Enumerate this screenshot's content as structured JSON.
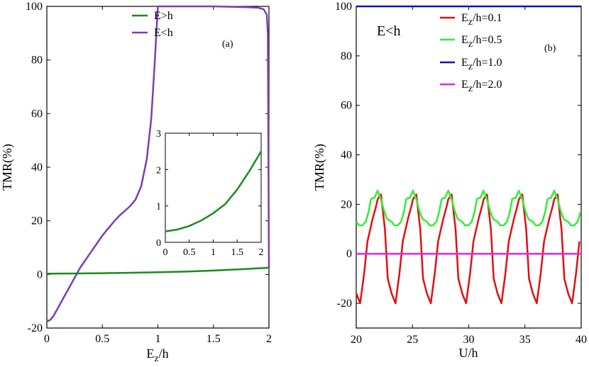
{
  "figure": "TMR versus Ez/h and U/h",
  "chart_data": [
    {
      "id": "a",
      "type": "line",
      "panel_label": "(a)",
      "xlabel": {
        "main": "E",
        "sub": "z",
        "rest": "/h"
      },
      "ylabel": "TMR(%)",
      "xlim": [
        0,
        2
      ],
      "ylim": [
        -20,
        100
      ],
      "xticks": [
        0,
        0.5,
        1,
        1.5,
        2
      ],
      "xtick_labels": [
        "0",
        "0.5",
        "1",
        "1.5",
        "2"
      ],
      "yticks": [
        -20,
        0,
        20,
        40,
        60,
        80,
        100
      ],
      "ytick_labels": [
        "-20",
        "0",
        "20",
        "40",
        "60",
        "80",
        "100"
      ],
      "legend_position": "top-right",
      "series": [
        {
          "name": "E>h",
          "color": "#1a8c1a",
          "x": [
            0,
            0.25,
            0.5,
            0.75,
            1.0,
            1.25,
            1.5,
            1.75,
            2.0
          ],
          "y": [
            0.3,
            0.35,
            0.45,
            0.6,
            0.8,
            1.05,
            1.45,
            1.95,
            2.5
          ]
        },
        {
          "name": "E<h",
          "color": "#7b3fb5",
          "x": [
            0.0,
            0.01,
            0.03,
            0.06,
            0.1,
            0.2,
            0.3,
            0.4,
            0.5,
            0.6,
            0.65,
            0.7,
            0.75,
            0.8,
            0.85,
            0.9,
            0.94,
            0.97,
            0.99,
            1.0,
            1.2,
            1.5,
            1.8,
            1.9,
            1.95,
            1.98,
            1.99,
            2.0
          ],
          "y": [
            -17,
            -17.4,
            -17,
            -15.5,
            -12.5,
            -5,
            2.5,
            8.5,
            14.5,
            19.5,
            21.8,
            23.6,
            25.5,
            28,
            33,
            43,
            58,
            78,
            93,
            100,
            100,
            100,
            99.7,
            99.5,
            99,
            97,
            90,
            2.5
          ]
        }
      ],
      "inset": {
        "xlim": [
          0,
          2
        ],
        "ylim": [
          0,
          3
        ],
        "xticks": [
          0,
          0.5,
          1,
          1.5,
          2
        ],
        "xtick_labels": [
          "0",
          "0.5",
          "1",
          "1.5",
          "2"
        ],
        "yticks": [
          0,
          1,
          2,
          3
        ],
        "ytick_labels": [
          "0",
          "1",
          "2",
          "3"
        ],
        "series_name": "E>h"
      }
    },
    {
      "id": "b",
      "type": "line",
      "panel_label": "(b)",
      "annotation": "E<h",
      "xlabel": "U/h",
      "ylabel": "TMR(%)",
      "xlim": [
        20,
        40
      ],
      "ylim": [
        -30,
        100
      ],
      "xticks": [
        20,
        25,
        30,
        35,
        40
      ],
      "xtick_labels": [
        "20",
        "25",
        "30",
        "35",
        "40"
      ],
      "yticks": [
        -20,
        0,
        20,
        40,
        60,
        80,
        100
      ],
      "ytick_labels": [
        "-20",
        "0",
        "20",
        "40",
        "60",
        "80",
        "100"
      ],
      "legend_position": "top-right",
      "period": 3.14,
      "series": [
        {
          "name_main": "E",
          "name_sub": "z",
          "name_rest": "/h=0.1",
          "color": "#e01010",
          "periodic_phase_u": [
            0.0,
            0.35,
            0.7,
            1.0,
            1.45,
            1.75,
            1.9,
            2.2,
            2.55,
            2.8,
            3.14
          ],
          "periodic_phase_y": [
            -16,
            -20,
            -8,
            5,
            14,
            19,
            22,
            24,
            10,
            -10,
            -16
          ]
        },
        {
          "name_main": "E",
          "name_sub": "z",
          "name_rest": "/h=0.5",
          "color": "#33ee33",
          "periodic_phase_u": [
            0.0,
            0.25,
            0.55,
            0.85,
            1.1,
            1.3,
            1.45,
            1.6,
            1.75,
            1.9,
            2.2,
            2.5,
            2.75,
            3.14
          ],
          "periodic_phase_y": [
            13,
            11.5,
            11.5,
            13,
            17,
            22,
            22.5,
            22.5,
            24,
            25.5,
            22,
            17,
            14,
            13
          ]
        },
        {
          "name_main": "E",
          "name_sub": "z",
          "name_rest": "/h=1.0",
          "color": "#1010d0",
          "constant": 100
        },
        {
          "name_main": "E",
          "name_sub": "z",
          "name_rest": "/h=2.0",
          "color": "#ee22ee",
          "constant": 0
        }
      ]
    }
  ]
}
